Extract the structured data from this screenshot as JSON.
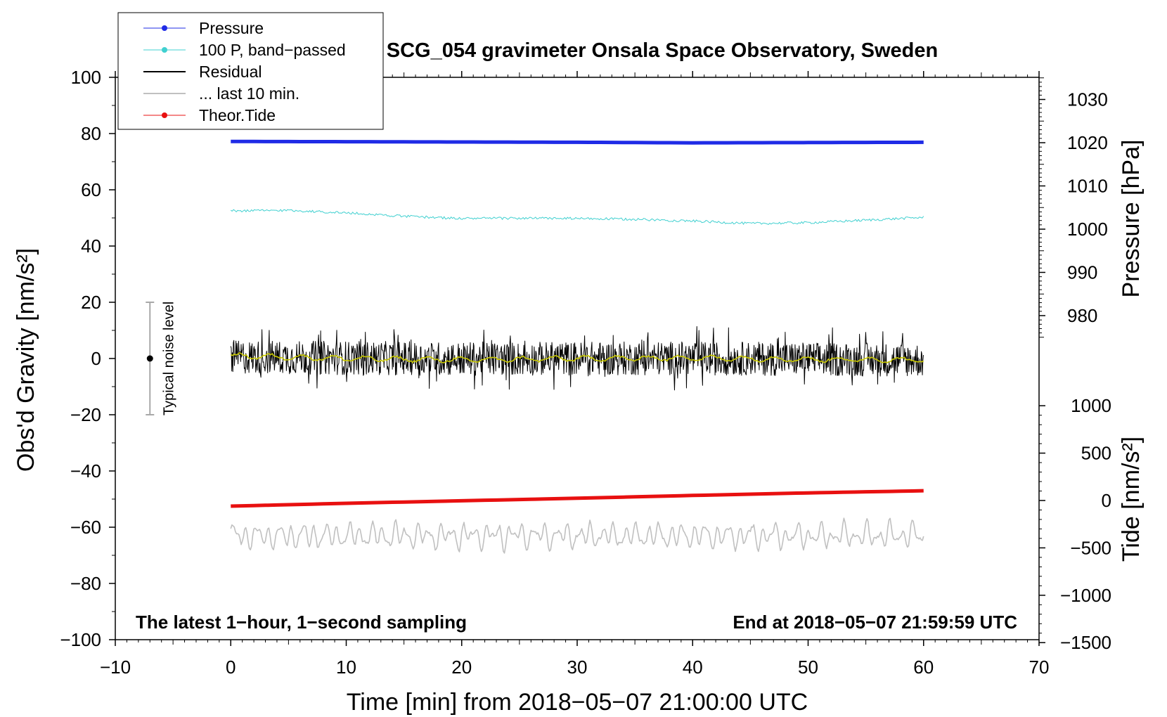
{
  "chart_data": {
    "type": "line",
    "title": "SCG_054 gravimeter Onsala Space Observatory, Sweden",
    "xlabel": "Time [min] from 2018−05−07 21:00:00 UTC",
    "ylabel_left": "Obs'd Gravity [nm/s²]",
    "ylabel_pressure": "Pressure [hPa]",
    "ylabel_tide": "Tide [nm/s²]",
    "xlim": [
      -10,
      70
    ],
    "ylim": [
      -100,
      100
    ],
    "x_ticks": [
      -10,
      0,
      10,
      20,
      30,
      40,
      50,
      60,
      70
    ],
    "x_tick_labels": [
      "−10",
      "0",
      "10",
      "20",
      "30",
      "40",
      "50",
      "60",
      "70"
    ],
    "y_ticks": [
      -100,
      -80,
      -60,
      -40,
      -20,
      0,
      20,
      40,
      60,
      80,
      100
    ],
    "y_tick_labels": [
      "−100",
      "−80",
      "−60",
      "−40",
      "−20",
      "0",
      "20",
      "40",
      "60",
      "80",
      "100"
    ],
    "pressure_axis": {
      "label": "Pressure [hPa]",
      "ticks": [
        980,
        990,
        1000,
        1010,
        1020,
        1030
      ],
      "tick_labels": [
        "980",
        "990",
        "1000",
        "1010",
        "1020",
        "1030"
      ]
    },
    "tide_axis": {
      "label": "Tide [nm/s²]",
      "ticks": [
        -1500,
        -1000,
        -500,
        0,
        500,
        1000
      ],
      "tick_labels": [
        "−1500",
        "−1000",
        "−500",
        "0",
        "500",
        "1000"
      ]
    },
    "legend": {
      "position": "top-left",
      "entries": [
        {
          "name": "Pressure",
          "color": "#1f2be6",
          "marker": true
        },
        {
          "name": "100 P, band−passed",
          "color": "#40d0d0",
          "marker": true
        },
        {
          "name": "Residual",
          "color": "#000000",
          "marker": false
        },
        {
          "name": "... last 10 min.",
          "color": "#c0c0c0",
          "marker": false
        },
        {
          "name": "Theor.Tide",
          "color": "#e81010",
          "marker": true
        }
      ]
    },
    "series": [
      {
        "name": "Pressure",
        "color": "#1f2be6",
        "x": [
          0,
          10,
          20,
          30,
          40,
          50,
          60
        ],
        "y": [
          77.2,
          77.1,
          77.0,
          76.9,
          76.7,
          76.8,
          76.9
        ]
      },
      {
        "name": "100 P, band−passed",
        "color": "#40d0d0",
        "x": [
          0,
          5,
          10,
          15,
          20,
          25,
          30,
          35,
          40,
          45,
          50,
          55,
          60
        ],
        "y": [
          52.5,
          52.7,
          51.8,
          50.6,
          49.8,
          49.9,
          49.8,
          49.5,
          48.9,
          48.0,
          48.3,
          49.2,
          50.2
        ]
      },
      {
        "name": "Residual",
        "color": "#000000",
        "x": [
          0,
          10,
          20,
          30,
          40,
          50,
          60
        ],
        "y": [
          0.5,
          0.2,
          -0.1,
          0.0,
          0.1,
          -0.2,
          -0.5
        ],
        "amplitude": 6
      },
      {
        "name": "Residual smoothed",
        "color": "#c8c800",
        "x": [
          0,
          10,
          20,
          30,
          40,
          50,
          60
        ],
        "y": [
          1.0,
          0.0,
          -0.5,
          0.0,
          0.2,
          -0.3,
          -0.5
        ]
      },
      {
        "name": "... last 10 min.",
        "color": "#c0c0c0",
        "x": [
          0,
          60
        ],
        "y": [
          -63.0,
          -63.0
        ],
        "amplitude": 5
      },
      {
        "name": "Theor.Tide",
        "color": "#e81010",
        "x": [
          0,
          10,
          20,
          30,
          40,
          50,
          60.5
        ],
        "y": [
          -52.5,
          -51.5,
          -50.6,
          -49.7,
          -48.7,
          -47.8,
          -47.0
        ]
      }
    ],
    "annotations": {
      "noise_label": "Typical noise level",
      "noise_bar": {
        "x": -7,
        "center": 0,
        "low": -20,
        "high": 20
      },
      "bottom_left": "The latest 1−hour, 1−second sampling",
      "bottom_right": "End at 2018−05−07 21:59:59 UTC"
    }
  }
}
